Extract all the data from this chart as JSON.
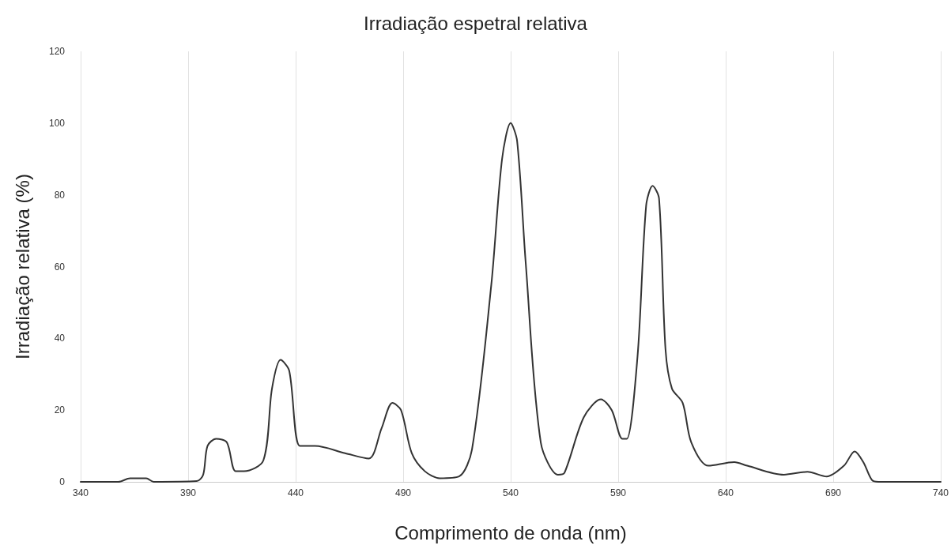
{
  "chart_data": {
    "type": "line",
    "title": "Irradiação espetral relativa",
    "xlabel": "Comprimento de onda (nm)",
    "ylabel": "Irradiação relativa (%)",
    "x": [
      340,
      357.5,
      363,
      370.5,
      374,
      394,
      397,
      399,
      403,
      408,
      412,
      416,
      425,
      429,
      433,
      437,
      442,
      449,
      463,
      474,
      480,
      485,
      489,
      494,
      500,
      507,
      516,
      522,
      531,
      536,
      540,
      543,
      547,
      554,
      562,
      565,
      574,
      582,
      587,
      592,
      594,
      599,
      603,
      606,
      609,
      612,
      615,
      620,
      624,
      632,
      644,
      650,
      667,
      678,
      687,
      695,
      700,
      704,
      708,
      711,
      740
    ],
    "series": [
      {
        "color": "#333333",
        "values": [
          0,
          0,
          1,
          1,
          0,
          0.2,
          2,
          10,
          12,
          11,
          3,
          3,
          6,
          26,
          34,
          31,
          10,
          10,
          8,
          6.5,
          15,
          22,
          20,
          8,
          3,
          1,
          1.5,
          9,
          55,
          90,
          100,
          95,
          61,
          11,
          2,
          2.5,
          18,
          23,
          20,
          12,
          12,
          35,
          77,
          82.5,
          79,
          37,
          26,
          22,
          11,
          4.5,
          5.5,
          4.5,
          2,
          2.8,
          1.5,
          4.5,
          8.5,
          5.5,
          0.5,
          0,
          0
        ]
      }
    ],
    "xlim": [
      340,
      740
    ],
    "xticks": [
      340,
      390,
      440,
      490,
      540,
      590,
      640,
      690,
      740
    ],
    "ylim": [
      0,
      120
    ],
    "yticks": [
      0,
      20,
      40,
      60,
      80,
      100,
      120
    ],
    "grid": "x",
    "marker": "none",
    "line_style": "solid"
  }
}
